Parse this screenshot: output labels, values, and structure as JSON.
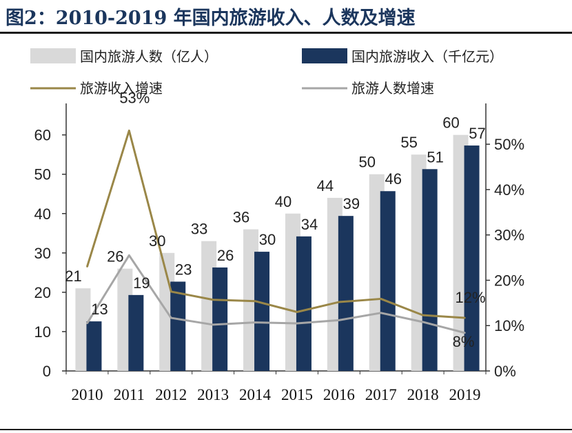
{
  "title": "图2：2010-2019 年国内旅游收入、人数及增速",
  "chart_data": {
    "type": "bar",
    "categories": [
      "2010",
      "2011",
      "2012",
      "2013",
      "2014",
      "2015",
      "2016",
      "2017",
      "2018",
      "2019"
    ],
    "series": [
      {
        "name": "国内旅游人数（亿人）",
        "kind": "bar",
        "axis": "left",
        "color": "#d9d9d9",
        "values": [
          21,
          26,
          30,
          33,
          36,
          40,
          44,
          50,
          55,
          60
        ],
        "labels": [
          "21",
          "26",
          "30",
          "33",
          "36",
          "40",
          "44",
          "50",
          "55",
          "60"
        ]
      },
      {
        "name": "国内旅游收入（千亿元）",
        "kind": "bar",
        "axis": "left",
        "color": "#1b365d",
        "values": [
          12.6,
          19.3,
          22.7,
          26.3,
          30.3,
          34.2,
          39.4,
          45.7,
          51.3,
          57.3
        ],
        "labels": [
          "13",
          "19",
          "23",
          "26",
          "30",
          "34",
          "39",
          "46",
          "51",
          "57"
        ]
      },
      {
        "name": "旅游收入增速",
        "kind": "line",
        "axis": "right",
        "color": "#9a8748",
        "values": [
          23,
          53,
          17.5,
          15.7,
          15.4,
          13,
          15.2,
          15.9,
          12.3,
          11.7
        ]
      },
      {
        "name": "旅游人数增速",
        "kind": "line",
        "axis": "right",
        "color": "#a6a6a6",
        "values": [
          10.5,
          25.5,
          11.7,
          10.2,
          10.7,
          10.5,
          11.2,
          12.8,
          10.8,
          8.4
        ]
      }
    ],
    "line_annotations": [
      {
        "series": 2,
        "index": 1,
        "text": "53%"
      },
      {
        "series": 2,
        "index": 9,
        "text": "12%"
      },
      {
        "series": 3,
        "index": 9,
        "text": "8%"
      }
    ],
    "y_left": {
      "min": 0,
      "max": 68,
      "ticks": [
        0,
        10,
        20,
        30,
        40,
        50,
        60
      ]
    },
    "y_right": {
      "min": 0,
      "max": 59,
      "ticks": [
        "0%",
        "10%",
        "20%",
        "30%",
        "40%",
        "50%"
      ],
      "tick_values": [
        0,
        10,
        20,
        30,
        40,
        50
      ]
    },
    "legend_position": "top",
    "grid": false
  }
}
